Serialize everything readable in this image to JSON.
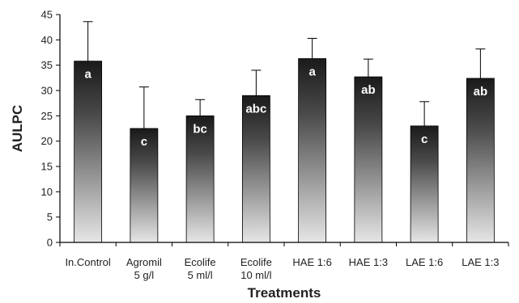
{
  "chart_data": {
    "type": "bar",
    "categories": [
      [
        "In.Control"
      ],
      [
        "Agromil",
        "5 g/l"
      ],
      [
        "Ecolife",
        "5 ml/l"
      ],
      [
        "Ecolife",
        "10 ml/l"
      ],
      [
        "HAE 1:6"
      ],
      [
        "HAE 1:3"
      ],
      [
        "LAE 1:6"
      ],
      [
        "LAE 1:3"
      ]
    ],
    "values": [
      35.8,
      22.5,
      25.0,
      29.0,
      36.3,
      32.7,
      23.0,
      32.4
    ],
    "error_plus": [
      7.8,
      8.2,
      3.2,
      5.0,
      4.0,
      3.5,
      4.8,
      5.8
    ],
    "significance_letters": [
      "a",
      "c",
      "bc",
      "abc",
      "a",
      "ab",
      "c",
      "ab"
    ],
    "xlabel": "Treatments",
    "ylabel": "AULPC",
    "ylim": [
      0,
      45
    ],
    "yticks": [
      0,
      5,
      10,
      15,
      20,
      25,
      30,
      35,
      40,
      45
    ],
    "grid": false,
    "bar_gradient": {
      "top": "#1a1a1a",
      "bottom": "#e6e6e6"
    }
  }
}
